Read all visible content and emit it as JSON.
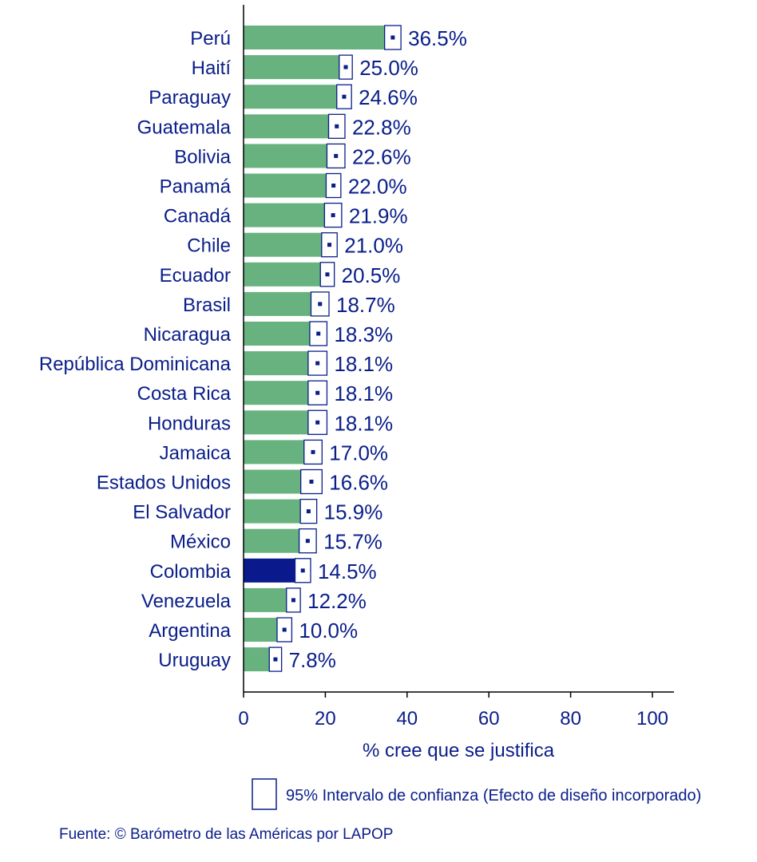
{
  "chart_data": {
    "type": "bar",
    "orientation": "horizontal",
    "categories": [
      "Perú",
      "Haití",
      "Paraguay",
      "Guatemala",
      "Bolivia",
      "Panamá",
      "Canadá",
      "Chile",
      "Ecuador",
      "Brasil",
      "Nicaragua",
      "República Dominicana",
      "Costa Rica",
      "Honduras",
      "Jamaica",
      "Estados Unidos",
      "El Salvador",
      "México",
      "Colombia",
      "Venezuela",
      "Argentina",
      "Uruguay"
    ],
    "values": [
      36.5,
      25.0,
      24.6,
      22.8,
      22.6,
      22.0,
      21.9,
      21.0,
      20.5,
      18.7,
      18.3,
      18.1,
      18.1,
      18.1,
      17.0,
      16.6,
      15.9,
      15.7,
      14.5,
      12.2,
      10.0,
      7.8
    ],
    "value_labels": [
      "36.5%",
      "25.0%",
      "24.6%",
      "22.8%",
      "22.6%",
      "22.0%",
      "21.9%",
      "21.0%",
      "20.5%",
      "18.7%",
      "18.3%",
      "18.1%",
      "18.1%",
      "18.1%",
      "17.0%",
      "16.6%",
      "15.9%",
      "15.7%",
      "14.5%",
      "12.2%",
      "10.0%",
      "7.8%"
    ],
    "ci_lower": [
      34.5,
      23.4,
      22.8,
      20.8,
      20.4,
      20.2,
      19.8,
      19.1,
      18.8,
      16.5,
      16.2,
      15.8,
      15.8,
      15.8,
      14.8,
      14.0,
      13.9,
      13.6,
      12.6,
      10.5,
      8.2,
      6.3
    ],
    "ci_upper": [
      38.5,
      26.6,
      26.4,
      24.8,
      24.8,
      23.8,
      24.0,
      22.9,
      22.2,
      20.9,
      20.4,
      20.4,
      20.4,
      20.4,
      19.2,
      19.2,
      17.9,
      17.8,
      16.4,
      13.9,
      11.8,
      9.3
    ],
    "highlight": "Colombia",
    "colors": {
      "bar": "#67b27f",
      "highlight": "#0a1a8c",
      "text": "#0a1e8a",
      "ci_border": "#0a1e8a"
    },
    "xlim": [
      0,
      105
    ],
    "xticks": [
      0,
      20,
      40,
      60,
      80,
      100
    ],
    "xlabel": "% cree que se justifica",
    "ylabel": "",
    "title": "",
    "grid": false,
    "legend": {
      "label": "95% Intervalo de confianza (Efecto de diseño incorporado)",
      "placement": "bottom"
    }
  },
  "source": "Fuente: © Barómetro de las Américas por LAPOP"
}
